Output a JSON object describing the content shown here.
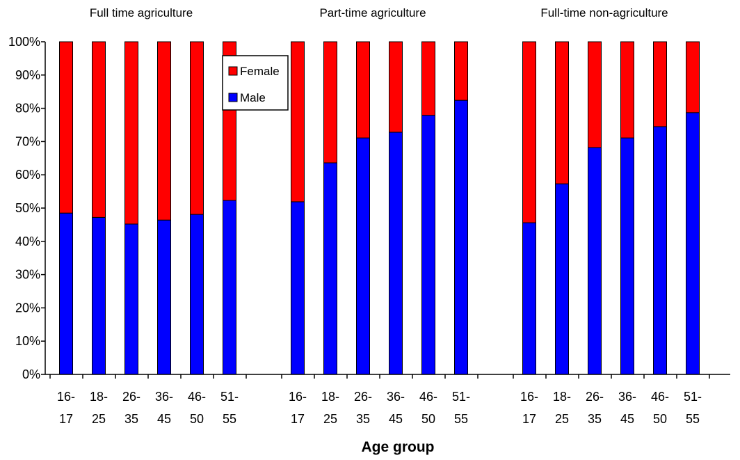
{
  "chart_data": {
    "type": "bar",
    "stacked": true,
    "percent_scale": true,
    "xlabel": "Age group",
    "ylabel": "",
    "ylim": [
      0,
      100
    ],
    "y_ticks": [
      "0%",
      "10%",
      "20%",
      "30%",
      "40%",
      "50%",
      "60%",
      "70%",
      "80%",
      "90%",
      "100%"
    ],
    "categories": [
      "16-17",
      "18-25",
      "26-35",
      "36-45",
      "46-50",
      "51-55"
    ],
    "category_lines": [
      [
        "16-",
        "17"
      ],
      [
        "18-",
        "25"
      ],
      [
        "26-",
        "35"
      ],
      [
        "36-",
        "45"
      ],
      [
        "46-",
        "50"
      ],
      [
        "51-",
        "55"
      ]
    ],
    "legend": {
      "placement": "top-center",
      "entries": [
        {
          "name": "Female",
          "color": "#ff0000"
        },
        {
          "name": "Male",
          "color": "#0000ff"
        }
      ]
    },
    "groups": [
      {
        "title": "Full time agriculture",
        "series": [
          {
            "name": "Male",
            "values": [
              48.5,
              47.2,
              45.2,
              46.4,
              48.1,
              52.3
            ]
          },
          {
            "name": "Female",
            "values": [
              51.5,
              52.8,
              54.8,
              53.6,
              51.9,
              47.7
            ]
          }
        ]
      },
      {
        "title": "Part-time agriculture",
        "series": [
          {
            "name": "Male",
            "values": [
              51.9,
              63.6,
              71.1,
              72.8,
              77.9,
              82.4
            ]
          },
          {
            "name": "Female",
            "values": [
              48.1,
              36.4,
              28.9,
              27.2,
              22.1,
              17.6
            ]
          }
        ]
      },
      {
        "title": "Full-time non-agriculture",
        "series": [
          {
            "name": "Male",
            "values": [
              45.6,
              57.3,
              68.2,
              71.1,
              74.5,
              78.7
            ]
          },
          {
            "name": "Female",
            "values": [
              54.4,
              42.7,
              31.8,
              28.9,
              25.5,
              21.3
            ]
          }
        ]
      }
    ],
    "grid": false,
    "colors": {
      "male": "#0000ff",
      "female": "#ff0000",
      "axis": "#000000"
    }
  }
}
